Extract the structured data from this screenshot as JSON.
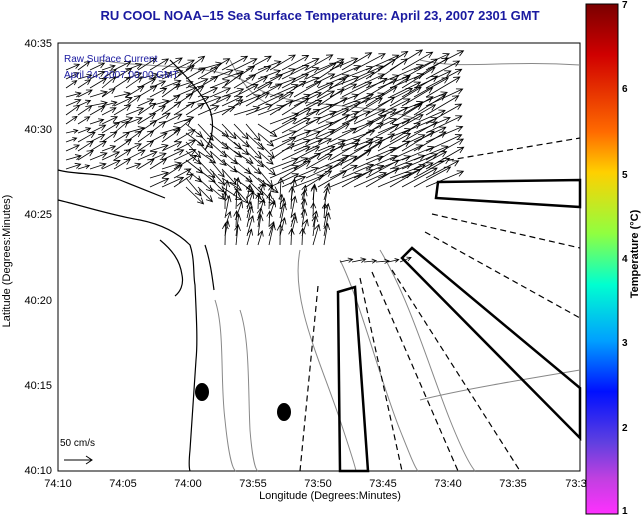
{
  "title": "RU COOL  NOAA–15  Sea Surface Temperature:  April 23, 2007 2301 GMT",
  "annotation": {
    "line1": "Raw Surface Current",
    "line2": "April 24, 2007 00:00 GMT"
  },
  "axes": {
    "xlabel": "Longitude (Degrees:Minutes)",
    "ylabel": "Latitude (Degrees:Minutes)",
    "xticks": [
      "74:10",
      "74:05",
      "74:00",
      "73:55",
      "73:50",
      "73:45",
      "73:40",
      "73:35",
      "73:3"
    ],
    "yticks": [
      "40:35",
      "40:30",
      "40:25",
      "40:20",
      "40:15",
      "40:10"
    ]
  },
  "colorbar": {
    "label": "Temperature (°C)",
    "ticks": [
      "7",
      "6",
      "5",
      "4",
      "3",
      "2",
      "1"
    ]
  },
  "scale_label": "50 cm/s",
  "colors": {
    "title": "#1a1aa0",
    "annotation": "#1a1aa0",
    "coast": "#000000",
    "contour": "#888888"
  },
  "markers": [
    {
      "name": "buoy-1",
      "lon": -73.98,
      "lat": 40.245
    },
    {
      "name": "buoy-2",
      "lon": -73.875,
      "lat": 40.225
    }
  ]
}
